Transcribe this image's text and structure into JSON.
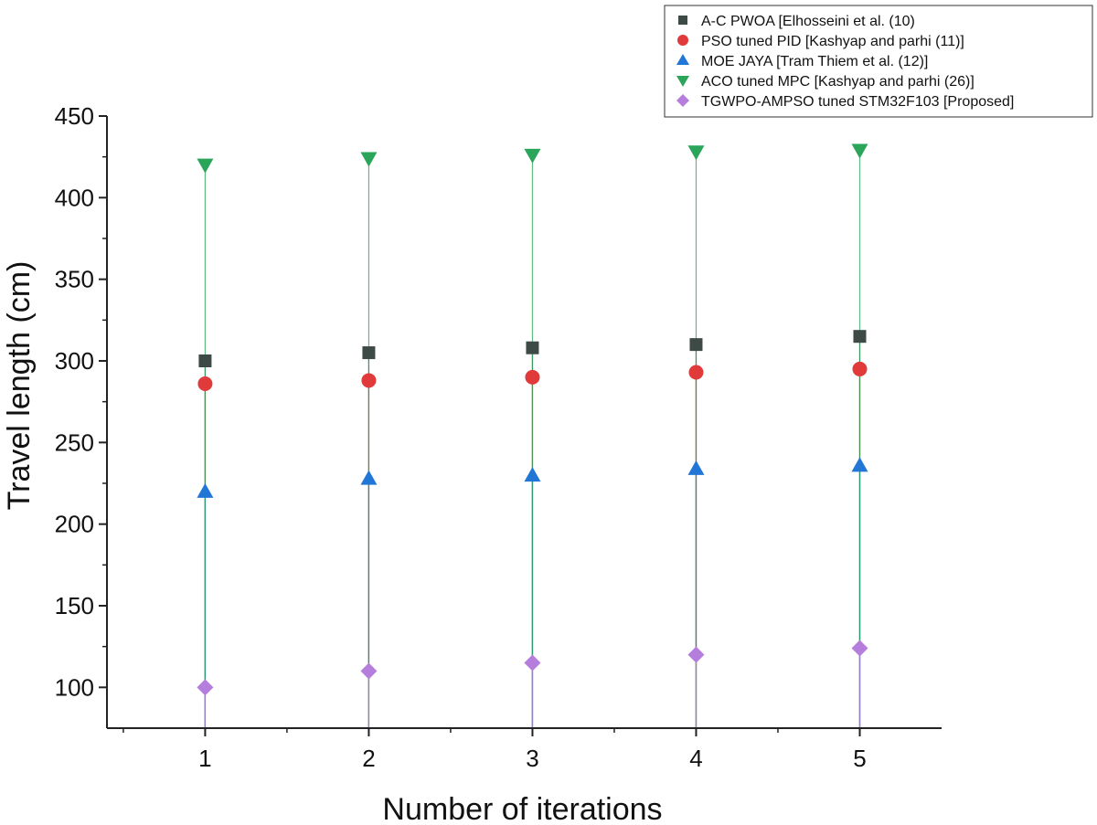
{
  "chart_data": {
    "type": "scatter",
    "title": "",
    "xlabel": "Number of iterations",
    "ylabel": "Travel length (cm)",
    "x": [
      1,
      2,
      3,
      4,
      5
    ],
    "xlim": [
      0.4,
      5.5
    ],
    "ylim": [
      75,
      450
    ],
    "x_ticks": [
      1,
      2,
      3,
      4,
      5
    ],
    "y_ticks": [
      100,
      150,
      200,
      250,
      300,
      350,
      400,
      450
    ],
    "grid": false,
    "legend_position": "top-right",
    "drop_lines": true,
    "series": [
      {
        "name": "A-C PWOA [Elhosseini et al. (10)",
        "marker": "square",
        "color": "#3d4a46",
        "values": [
          300,
          305,
          308,
          310,
          315
        ]
      },
      {
        "name": "PSO tuned PID [Kashyap and parhi (11)]",
        "marker": "circle",
        "color": "#e03a3a",
        "values": [
          286,
          288,
          290,
          293,
          295
        ]
      },
      {
        "name": "MOE JAYA [Tram Thiem et al. (12)]",
        "marker": "triangle-up",
        "color": "#2277d6",
        "values": [
          220,
          228,
          230,
          234,
          236
        ]
      },
      {
        "name": "ACO tuned MPC [Kashyap and parhi (26)]",
        "marker": "triangle-down",
        "color": "#2aa55a",
        "values": [
          420,
          424,
          426,
          428,
          429
        ]
      },
      {
        "name": "TGWPO-AMPSO tuned STM32F103 [Proposed]",
        "marker": "diamond",
        "color": "#b57edc",
        "values": [
          100,
          110,
          115,
          120,
          124
        ]
      }
    ]
  }
}
